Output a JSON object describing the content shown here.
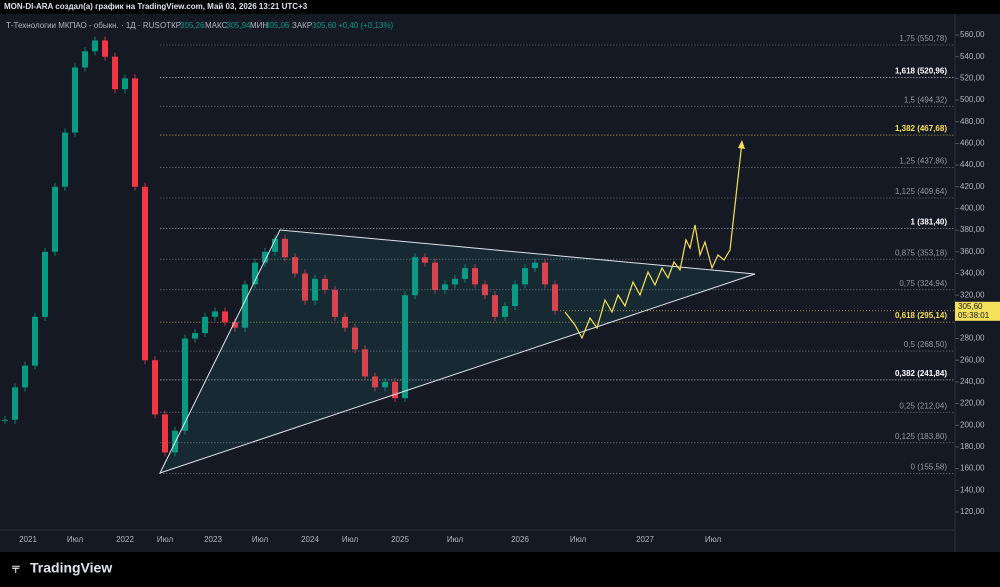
{
  "header": {
    "credit": "MON-DI-ARA создал(а) график на TradingView.com, Май 03, 2026 13:21 UTC+3"
  },
  "legend": {
    "symbol": "Т-Технологии МКПАО - обыкн. · 1Д · RUS",
    "open_label": "ОТКР",
    "open": "305,26",
    "high_label": "МАКС",
    "high": "305,94",
    "low_label": "МИН",
    "low": "305,06",
    "close_label": "ЗАКР",
    "close": "305,60",
    "change": "+0,40 (+0,13%)"
  },
  "price_axis": {
    "ylim": [
      120,
      560
    ],
    "ticks": [
      {
        "value": 560,
        "label": "560,00"
      },
      {
        "value": 540,
        "label": "540,00"
      },
      {
        "value": 520,
        "label": "520,00"
      },
      {
        "value": 500,
        "label": "500,00"
      },
      {
        "value": 480,
        "label": "480,00"
      },
      {
        "value": 460,
        "label": "460,00"
      },
      {
        "value": 440,
        "label": "440,00"
      },
      {
        "value": 420,
        "label": "420,00"
      },
      {
        "value": 400,
        "label": "400,00"
      },
      {
        "value": 380,
        "label": "380,00"
      },
      {
        "value": 360,
        "label": "360,00"
      },
      {
        "value": 340,
        "label": "340,00"
      },
      {
        "value": 320,
        "label": "320,00"
      },
      {
        "value": 280,
        "label": "280,00"
      },
      {
        "value": 260,
        "label": "260,00"
      },
      {
        "value": 240,
        "label": "240,00"
      },
      {
        "value": 220,
        "label": "220,00"
      },
      {
        "value": 200,
        "label": "200,00"
      },
      {
        "value": 180,
        "label": "180,00"
      },
      {
        "value": 160,
        "label": "160,00"
      },
      {
        "value": 140,
        "label": "140,00"
      },
      {
        "value": 120,
        "label": "120,00"
      }
    ]
  },
  "fib_levels": [
    {
      "value": 550.78,
      "label": "1,75 (550,78)",
      "color": "#9598a1",
      "bold": false
    },
    {
      "value": 520.96,
      "label": "1,618 (520,96)",
      "color": "#ffffff",
      "bold": true
    },
    {
      "value": 494.32,
      "label": "1,5 (494,32)",
      "color": "#9598a1",
      "bold": false
    },
    {
      "value": 467.68,
      "label": "1,382 (467,68)",
      "color": "#f5e05a",
      "bold": true
    },
    {
      "value": 437.86,
      "label": "1,25 (437,86)",
      "color": "#9598a1",
      "bold": false
    },
    {
      "value": 409.64,
      "label": "1,125 (409,64)",
      "color": "#9598a1",
      "bold": false
    },
    {
      "value": 381.4,
      "label": "1 (381,40)",
      "color": "#ffffff",
      "bold": true
    },
    {
      "value": 353.18,
      "label": "0,875 (353,18)",
      "color": "#9598a1",
      "bold": false
    },
    {
      "value": 324.94,
      "label": "0,75 (324,94)",
      "color": "#9598a1",
      "bold": false
    },
    {
      "value": 295.14,
      "label": "0,618 (295,14)",
      "color": "#f5e05a",
      "bold": true
    },
    {
      "value": 268.5,
      "label": "0,5 (268,50)",
      "color": "#9598a1",
      "bold": false
    },
    {
      "value": 241.84,
      "label": "0,382 (241,84)",
      "color": "#ffffff",
      "bold": true
    },
    {
      "value": 212.04,
      "label": "0,25 (212,04)",
      "color": "#9598a1",
      "bold": false
    },
    {
      "value": 183.8,
      "label": "0,125 (183,80)",
      "color": "#9598a1",
      "bold": false
    },
    {
      "value": 155.58,
      "label": "0 (155,58)",
      "color": "#9598a1",
      "bold": false
    }
  ],
  "last_price": {
    "value": 305.6,
    "label": "305,60",
    "countdown": "05:38:01"
  },
  "time_axis": [
    "2021",
    "Июл",
    "2022",
    "Июл",
    "2023",
    "Июл",
    "2024",
    "Июл",
    "2025",
    "Июл",
    "2026",
    "Июл",
    "2027",
    "Июл"
  ],
  "closes": [
    205,
    235,
    255,
    300,
    360,
    420,
    470,
    530,
    545,
    555,
    540,
    510,
    520,
    420,
    260,
    210,
    175,
    195,
    280,
    285,
    300,
    305,
    295,
    290,
    330,
    350,
    360,
    372,
    355,
    340,
    315,
    335,
    325,
    300,
    290,
    270,
    245,
    235,
    240,
    225,
    320,
    355,
    350,
    325,
    330,
    335,
    345,
    330,
    320,
    300,
    310,
    330,
    345,
    350,
    330,
    305.6
  ],
  "footer": {
    "brand": "TradingView"
  }
}
